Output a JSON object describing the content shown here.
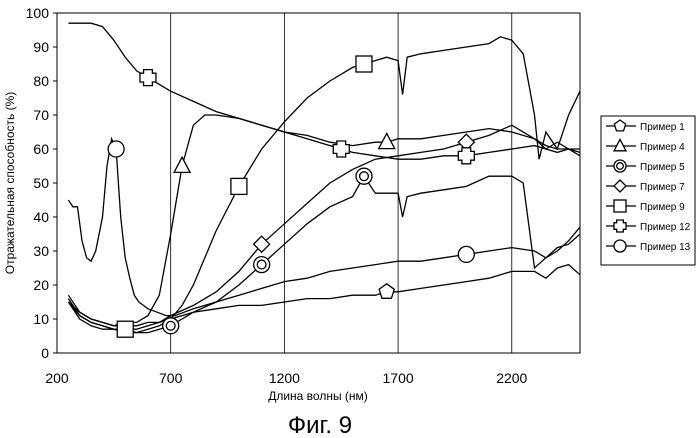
{
  "chart_data": {
    "type": "line",
    "xlabel": "Длина волны (нм)",
    "ylabel": "Отражательная способность (%)",
    "caption": "Фиг. 9",
    "xlim": [
      200,
      2500
    ],
    "ylim": [
      0,
      100
    ],
    "x_ticks": [
      "200",
      "700",
      "1200",
      "1700",
      "2200"
    ],
    "y_ticks": [
      "0",
      "10",
      "20",
      "30",
      "40",
      "50",
      "60",
      "70",
      "80",
      "90",
      "100"
    ],
    "grid": "vertical",
    "legend_position": "right",
    "series": [
      {
        "name": "Пример 1",
        "marker": "pentagon",
        "x": [
          250,
          300,
          350,
          400,
          450,
          500,
          550,
          600,
          650,
          700,
          750,
          800,
          900,
          1000,
          1100,
          1200,
          1300,
          1400,
          1500,
          1600,
          1650,
          1700,
          1800,
          1900,
          2000,
          2100,
          2200,
          2300,
          2350,
          2400,
          2450,
          2500
        ],
        "y": [
          15,
          12,
          10,
          9,
          8,
          8,
          8,
          9,
          9,
          10,
          11,
          12,
          13,
          14,
          14,
          15,
          16,
          16,
          17,
          17,
          18,
          18,
          19,
          20,
          21,
          22,
          24,
          24,
          22,
          25,
          26,
          23
        ]
      },
      {
        "name": "Пример 4",
        "marker": "triangle",
        "x": [
          250,
          300,
          350,
          400,
          450,
          500,
          550,
          600,
          650,
          700,
          750,
          800,
          850,
          900,
          1000,
          1100,
          1200,
          1300,
          1400,
          1500,
          1600,
          1650,
          1700,
          1800,
          1900,
          2000,
          2100,
          2200,
          2300,
          2350,
          2400,
          2450,
          2500
        ],
        "y": [
          17,
          12,
          10,
          9,
          8,
          9,
          9,
          11,
          17,
          35,
          55,
          67,
          70,
          70,
          69,
          67,
          65,
          64,
          62,
          61,
          62,
          62,
          63,
          63,
          64,
          65,
          66,
          65,
          63,
          60,
          62,
          60,
          59
        ]
      },
      {
        "name": "Пример 5",
        "marker": "target",
        "x": [
          250,
          300,
          350,
          400,
          450,
          500,
          550,
          600,
          650,
          700,
          800,
          900,
          1000,
          1100,
          1200,
          1300,
          1400,
          1500,
          1550,
          1600,
          1700,
          1720,
          1740,
          1800,
          1900,
          2000,
          2100,
          2200,
          2250,
          2300,
          2350,
          2400,
          2450,
          2500
        ],
        "y": [
          15,
          10,
          8,
          7,
          7,
          6,
          6,
          6,
          7,
          8,
          12,
          15,
          20,
          26,
          32,
          38,
          43,
          46,
          52,
          47,
          47,
          40,
          46,
          47,
          48,
          49,
          52,
          52,
          50,
          25,
          28,
          30,
          33,
          37
        ]
      },
      {
        "name": "Пример 7",
        "marker": "diamond",
        "x": [
          250,
          300,
          350,
          400,
          450,
          500,
          550,
          600,
          650,
          700,
          800,
          900,
          1000,
          1100,
          1200,
          1300,
          1400,
          1500,
          1600,
          1700,
          1800,
          1900,
          2000,
          2100,
          2200,
          2300,
          2350,
          2400,
          2450,
          2500
        ],
        "y": [
          15,
          11,
          9,
          8,
          7,
          7,
          7,
          8,
          9,
          11,
          14,
          18,
          24,
          32,
          38,
          44,
          50,
          54,
          57,
          58,
          59,
          60,
          62,
          64,
          67,
          63,
          61,
          60,
          60,
          60
        ]
      },
      {
        "name": "Пример 9",
        "marker": "square",
        "x": [
          250,
          300,
          350,
          400,
          450,
          500,
          550,
          600,
          650,
          700,
          750,
          800,
          900,
          1000,
          1100,
          1200,
          1300,
          1400,
          1500,
          1600,
          1650,
          1700,
          1720,
          1740,
          1800,
          1900,
          2000,
          2100,
          2150,
          2200,
          2250,
          2300,
          2320,
          2350,
          2400,
          2450,
          2500
        ],
        "y": [
          16,
          11,
          9,
          8,
          7,
          7,
          6,
          7,
          8,
          10,
          14,
          20,
          36,
          49,
          60,
          68,
          75,
          80,
          84,
          86,
          87,
          86,
          76,
          87,
          88,
          89,
          90,
          91,
          93,
          92,
          88,
          70,
          57,
          65,
          60,
          70,
          77
        ]
      },
      {
        "name": "Пример 12",
        "marker": "cross",
        "x": [
          250,
          300,
          350,
          400,
          450,
          500,
          550,
          600,
          650,
          700,
          800,
          900,
          1000,
          1100,
          1200,
          1300,
          1400,
          1450,
          1500,
          1600,
          1700,
          1800,
          1900,
          2000,
          2100,
          2200,
          2300,
          2350,
          2400,
          2450,
          2500
        ],
        "y": [
          97,
          97,
          97,
          96,
          92,
          87,
          83,
          81,
          79,
          77,
          74,
          71,
          69,
          67,
          65,
          63,
          61,
          60,
          59,
          58,
          57,
          57,
          58,
          58,
          59,
          60,
          61,
          60,
          59,
          60,
          58
        ]
      },
      {
        "name": "Пример 13",
        "marker": "circle",
        "x": [
          250,
          270,
          290,
          310,
          330,
          350,
          370,
          400,
          420,
          440,
          460,
          480,
          500,
          520,
          540,
          560,
          580,
          600,
          640,
          680,
          720,
          760,
          800,
          900,
          1000,
          1100,
          1200,
          1300,
          1400,
          1500,
          1600,
          1700,
          1800,
          1900,
          2000,
          2100,
          2200,
          2300,
          2350,
          2400,
          2450,
          2500
        ],
        "y": [
          45,
          43,
          43,
          33,
          28,
          27,
          30,
          40,
          55,
          63,
          60,
          40,
          28,
          22,
          17,
          15,
          14,
          13,
          12,
          11,
          11,
          12,
          13,
          15,
          17,
          19,
          21,
          22,
          24,
          25,
          26,
          27,
          27,
          28,
          29,
          30,
          31,
          30,
          28,
          31,
          32,
          35
        ]
      }
    ]
  }
}
